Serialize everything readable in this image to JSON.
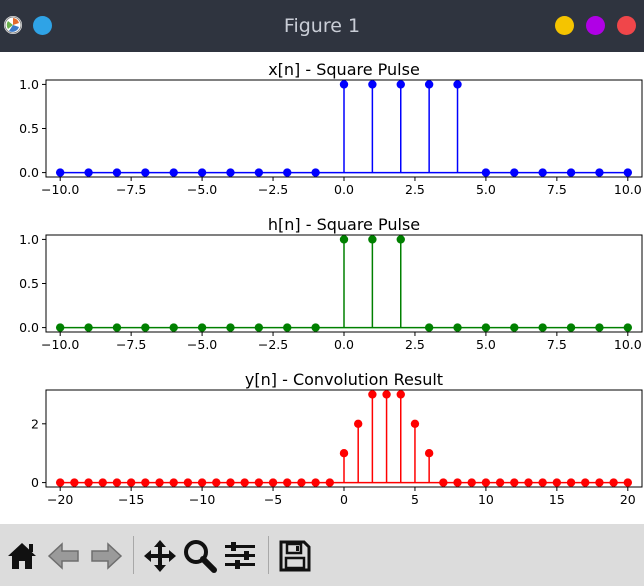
{
  "window": {
    "title": "Figure 1",
    "buttons": [
      {
        "name": "minimize",
        "color": "#f5c400"
      },
      {
        "name": "maximize",
        "color": "#b000e6"
      },
      {
        "name": "close",
        "color": "#f0464a"
      }
    ],
    "app_dot_color": "#2fa3e6"
  },
  "toolbar": {
    "icons": [
      "home-icon",
      "back-arrow-icon",
      "forward-arrow-icon",
      "pan-icon",
      "zoom-icon",
      "configure-subplots-icon",
      "save-icon"
    ]
  },
  "chart_data": [
    {
      "type": "stem",
      "title": "x[n] - Square Pulse",
      "color": "#0000ff",
      "x": [
        -10,
        -9,
        -8,
        -7,
        -6,
        -5,
        -4,
        -3,
        -2,
        -1,
        0,
        1,
        2,
        3,
        4,
        5,
        6,
        7,
        8,
        9,
        10
      ],
      "y": [
        0,
        0,
        0,
        0,
        0,
        0,
        0,
        0,
        0,
        0,
        1,
        1,
        1,
        1,
        1,
        0,
        0,
        0,
        0,
        0,
        0
      ],
      "xlim": [
        -10.5,
        10.5
      ],
      "ylim": [
        -0.05,
        1.05
      ],
      "xticks": [
        -10,
        -7.5,
        -5,
        -2.5,
        0,
        2.5,
        5,
        7.5,
        10
      ],
      "xtick_labels": [
        "−10.0",
        "−7.5",
        "−5.0",
        "−2.5",
        "0.0",
        "2.5",
        "5.0",
        "7.5",
        "10.0"
      ],
      "yticks": [
        0,
        0.5,
        1
      ],
      "ytick_labels": [
        "0.0",
        "0.5",
        "1.0"
      ]
    },
    {
      "type": "stem",
      "title": "h[n] - Square Pulse",
      "color": "#008000",
      "x": [
        -10,
        -9,
        -8,
        -7,
        -6,
        -5,
        -4,
        -3,
        -2,
        -1,
        0,
        1,
        2,
        3,
        4,
        5,
        6,
        7,
        8,
        9,
        10
      ],
      "y": [
        0,
        0,
        0,
        0,
        0,
        0,
        0,
        0,
        0,
        0,
        1,
        1,
        1,
        0,
        0,
        0,
        0,
        0,
        0,
        0,
        0
      ],
      "xlim": [
        -10.5,
        10.5
      ],
      "ylim": [
        -0.05,
        1.05
      ],
      "xticks": [
        -10,
        -7.5,
        -5,
        -2.5,
        0,
        2.5,
        5,
        7.5,
        10
      ],
      "xtick_labels": [
        "−10.0",
        "−7.5",
        "−5.0",
        "−2.5",
        "0.0",
        "2.5",
        "5.0",
        "7.5",
        "10.0"
      ],
      "yticks": [
        0,
        0.5,
        1
      ],
      "ytick_labels": [
        "0.0",
        "0.5",
        "1.0"
      ]
    },
    {
      "type": "stem",
      "title": "y[n] - Convolution Result",
      "color": "#ff0000",
      "x": [
        -20,
        -19,
        -18,
        -17,
        -16,
        -15,
        -14,
        -13,
        -12,
        -11,
        -10,
        -9,
        -8,
        -7,
        -6,
        -5,
        -4,
        -3,
        -2,
        -1,
        0,
        1,
        2,
        3,
        4,
        5,
        6,
        7,
        8,
        9,
        10,
        11,
        12,
        13,
        14,
        15,
        16,
        17,
        18,
        19,
        20
      ],
      "y": [
        0,
        0,
        0,
        0,
        0,
        0,
        0,
        0,
        0,
        0,
        0,
        0,
        0,
        0,
        0,
        0,
        0,
        0,
        0,
        0,
        1,
        2,
        3,
        3,
        3,
        2,
        1,
        0,
        0,
        0,
        0,
        0,
        0,
        0,
        0,
        0,
        0,
        0,
        0,
        0,
        0
      ],
      "xlim": [
        -21,
        21
      ],
      "ylim": [
        -0.15,
        3.15
      ],
      "xticks": [
        -20,
        -15,
        -10,
        -5,
        0,
        5,
        10,
        15,
        20
      ],
      "xtick_labels": [
        "−20",
        "−15",
        "−10",
        "−5",
        "0",
        "5",
        "10",
        "15",
        "20"
      ],
      "yticks": [
        0,
        2
      ],
      "ytick_labels": [
        "0",
        "2"
      ]
    }
  ]
}
